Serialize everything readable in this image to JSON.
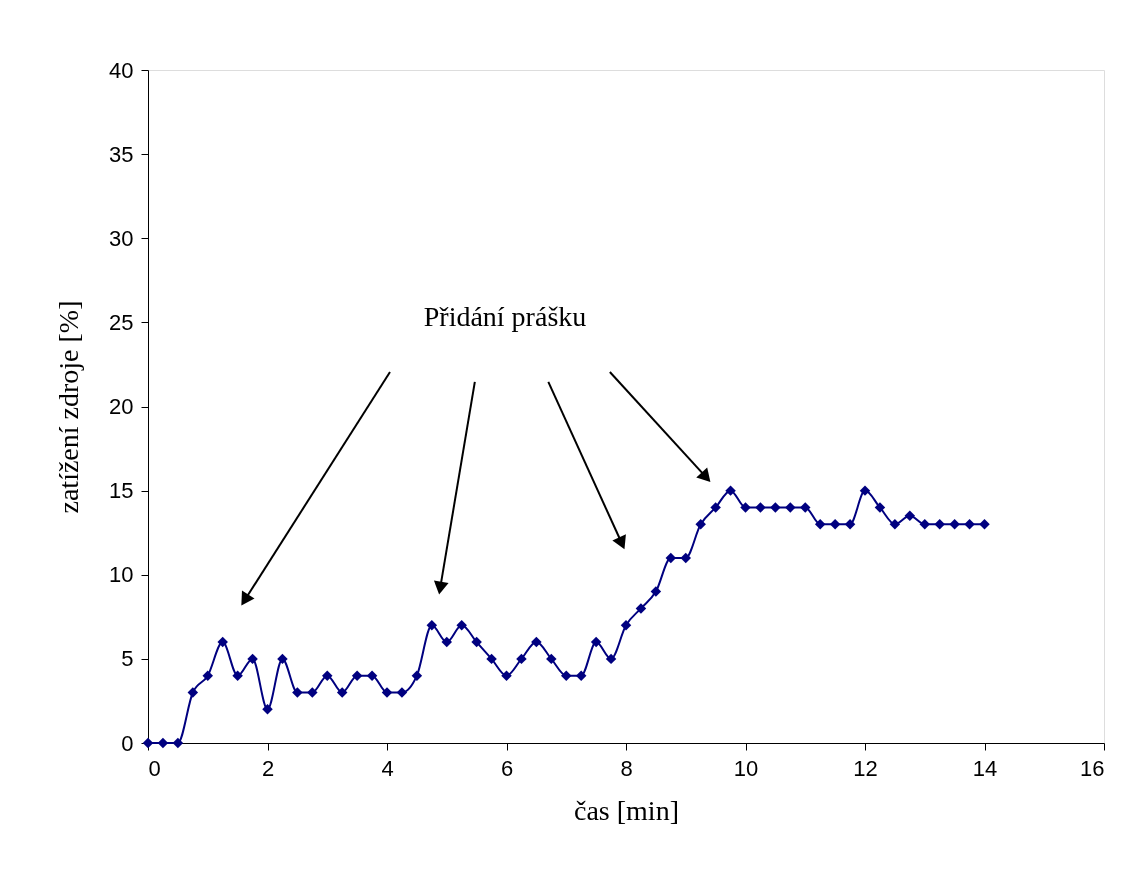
{
  "chart_data": {
    "type": "line",
    "xlabel": "čas [min]",
    "ylabel": "zatížení zdroje [%]",
    "annotations": [
      "Přidání prášku"
    ],
    "x": [
      0,
      0.25,
      0.5,
      0.75,
      1,
      1.25,
      1.5,
      1.75,
      2,
      2.25,
      2.5,
      2.75,
      3,
      3.25,
      3.5,
      3.75,
      4,
      4.25,
      4.5,
      4.75,
      5,
      5.25,
      5.5,
      5.75,
      6,
      6.25,
      6.5,
      6.75,
      7,
      7.25,
      7.5,
      7.75,
      8,
      8.25,
      8.5,
      8.75,
      9,
      9.25,
      9.5,
      9.75,
      10,
      10.25,
      10.5,
      10.75,
      11,
      11.25,
      11.5,
      11.75,
      12,
      12.25,
      12.5,
      12.75,
      13,
      13.25,
      13.5,
      13.75,
      14
    ],
    "series": [
      {
        "color": "#000080",
        "values": [
          0,
          0,
          0,
          3,
          4,
          6,
          4,
          5,
          2,
          5,
          3,
          3,
          4,
          3,
          4,
          4,
          3,
          3,
          4,
          7,
          6,
          7,
          6,
          5,
          4,
          5,
          6,
          5,
          4,
          4,
          6,
          5,
          7,
          8,
          9,
          11,
          11,
          13,
          14,
          15,
          14,
          14,
          14,
          14,
          14,
          13,
          13,
          13,
          15,
          14,
          13,
          13.5,
          13,
          13,
          13,
          13,
          13
        ]
      }
    ],
    "xlim": [
      0,
      16
    ],
    "xticks": [
      0,
      2,
      4,
      6,
      8,
      10,
      12,
      14,
      16
    ],
    "ylim": [
      0,
      40
    ],
    "yticks": [
      0,
      5,
      10,
      15,
      20,
      25,
      30,
      35,
      40
    ],
    "grid": false,
    "marker": "diamond",
    "line_style": "solid"
  }
}
